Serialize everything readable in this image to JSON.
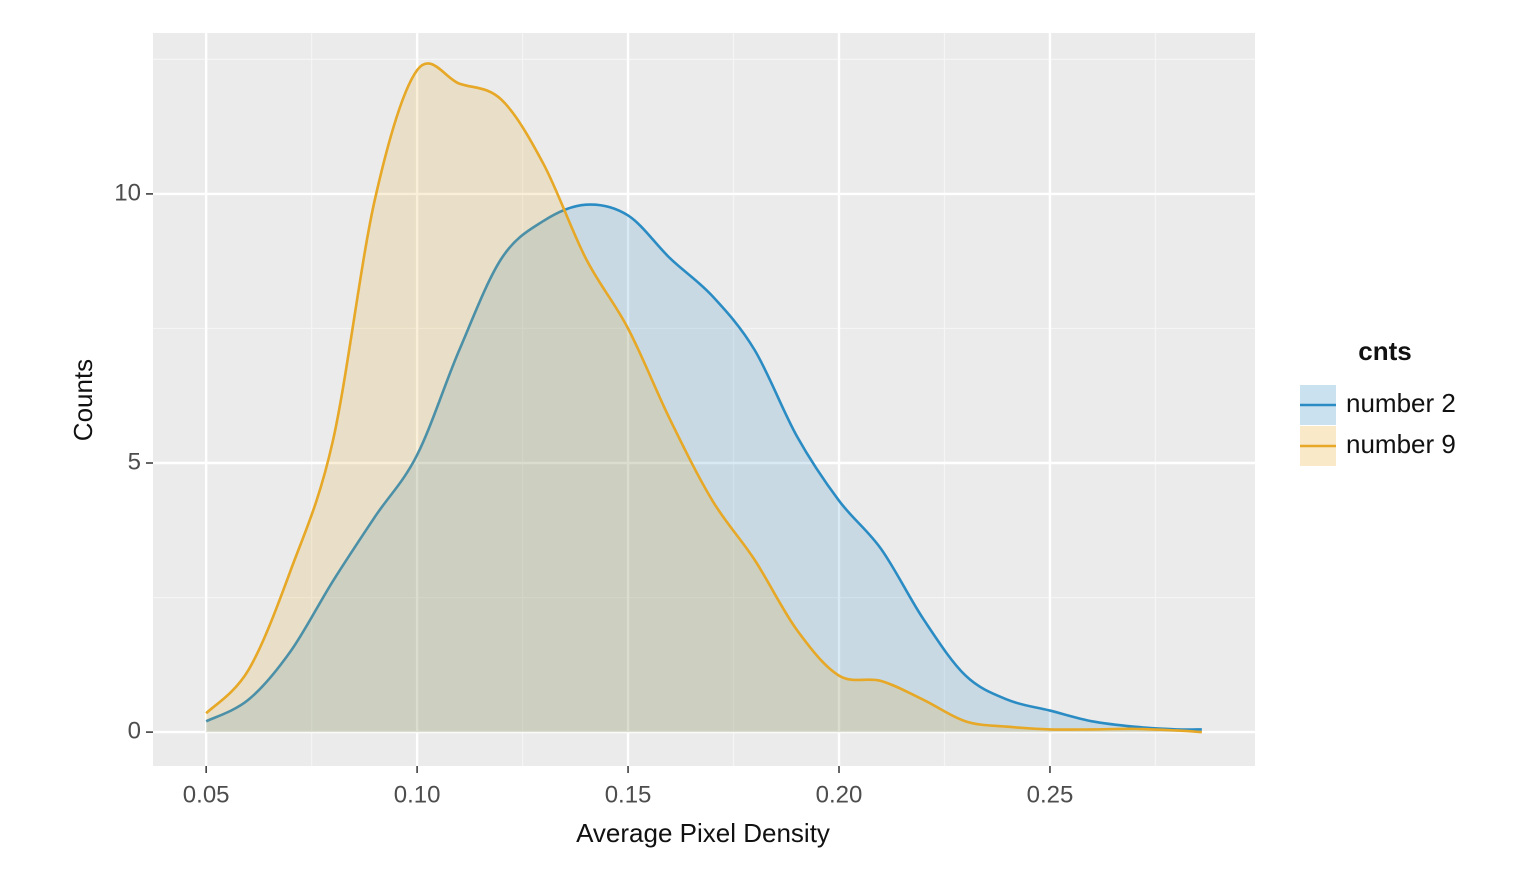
{
  "chart_data": {
    "type": "area",
    "x_label": "Average Pixel Density",
    "y_label": "Counts",
    "legend_title": "cnts",
    "legend": "right",
    "grid": true,
    "x": [
      0.05,
      0.06,
      0.07,
      0.08,
      0.09,
      0.1,
      0.11,
      0.12,
      0.13,
      0.14,
      0.15,
      0.16,
      0.17,
      0.18,
      0.19,
      0.2,
      0.21,
      0.22,
      0.23,
      0.24,
      0.25,
      0.26,
      0.27,
      0.28,
      0.286
    ],
    "series": [
      {
        "name": "number 2",
        "color": "#2b8cc4",
        "values": [
          0.2,
          0.6,
          1.5,
          2.8,
          4.0,
          5.15,
          7.1,
          8.8,
          9.5,
          9.8,
          9.6,
          8.8,
          8.1,
          7.1,
          5.5,
          4.3,
          3.4,
          2.1,
          1.05,
          0.6,
          0.4,
          0.2,
          0.1,
          0.05,
          0.05
        ]
      },
      {
        "name": "number 9",
        "color": "#e6a826",
        "values": [
          0.35,
          1.15,
          3.0,
          5.4,
          9.9,
          12.3,
          12.05,
          11.75,
          10.55,
          8.8,
          7.5,
          5.8,
          4.3,
          3.2,
          1.9,
          1.05,
          0.95,
          0.6,
          0.2,
          0.1,
          0.05,
          0.05,
          0.06,
          0.03,
          0.0
        ]
      }
    ],
    "xlim": [
      0.0374,
      0.2986
    ],
    "ylim": [
      -0.63,
      12.99
    ],
    "xticks": [
      0.05,
      {
        "value": 0.1,
        "label": "0.10"
      },
      0.15,
      {
        "value": 0.2,
        "label": "0.20"
      },
      0.25
    ],
    "yticks": [
      0,
      5,
      10
    ]
  }
}
